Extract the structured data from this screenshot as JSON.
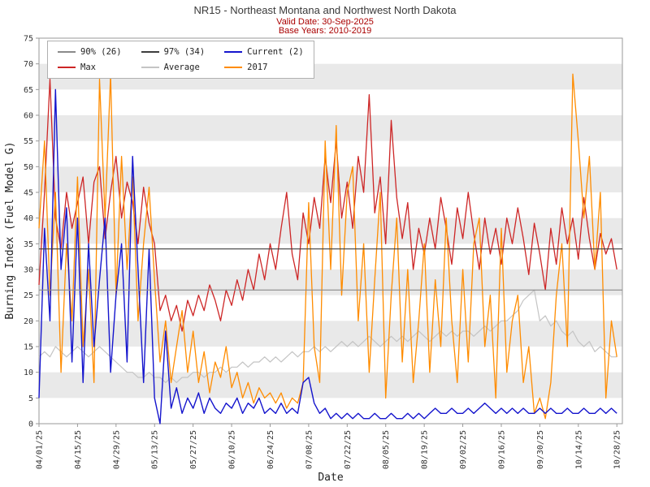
{
  "header": {
    "title": "NR15 - Northeast Montana and Northwest North Dakota",
    "valid_date": "Valid Date: 30-Sep-2025",
    "base_years": "Base Years: 2010-2019"
  },
  "chart_data": {
    "type": "line",
    "title": "NR15 - Northeast Montana and Northwest North Dakota",
    "xlabel": "Date",
    "ylabel": "Burning Index (Fuel Model G)",
    "ylim": [
      0,
      75
    ],
    "y_ticks": [
      0,
      5,
      10,
      15,
      20,
      25,
      30,
      35,
      40,
      45,
      50,
      55,
      60,
      65,
      70,
      75
    ],
    "x_max_day": 212,
    "x_step_days": 2,
    "x_ticks": [
      {
        "day": 0,
        "label": "04/01/25"
      },
      {
        "day": 14,
        "label": "04/15/25"
      },
      {
        "day": 28,
        "label": "04/29/25"
      },
      {
        "day": 42,
        "label": "05/13/25"
      },
      {
        "day": 56,
        "label": "05/27/25"
      },
      {
        "day": 70,
        "label": "06/10/25"
      },
      {
        "day": 84,
        "label": "06/24/25"
      },
      {
        "day": 98,
        "label": "07/08/25"
      },
      {
        "day": 112,
        "label": "07/22/25"
      },
      {
        "day": 126,
        "label": "08/05/25"
      },
      {
        "day": 140,
        "label": "08/19/25"
      },
      {
        "day": 154,
        "label": "09/02/25"
      },
      {
        "day": 168,
        "label": "09/16/25"
      },
      {
        "day": 182,
        "label": "09/30/25"
      },
      {
        "day": 196,
        "label": "10/14/25"
      },
      {
        "day": 210,
        "label": "10/28/25"
      }
    ],
    "colors": {
      "band": "#e9e9e9",
      "frame": "#9a9a9a"
    },
    "thresholds": [
      {
        "label": "90% (26)",
        "value": 26,
        "color": "#8a8a8a"
      },
      {
        "label": "97% (34)",
        "value": 34,
        "color": "#3d3d3d"
      }
    ],
    "legend": [
      {
        "label": "90% (26)",
        "color": "#8a8a8a"
      },
      {
        "label": "97% (34)",
        "color": "#3d3d3d"
      },
      {
        "label": "Current (2)",
        "color": "#1515cd"
      },
      {
        "label": "Max",
        "color": "#cd2626"
      },
      {
        "label": "Average",
        "color": "#c4c4c4"
      },
      {
        "label": "2017",
        "color": "#ff8c00"
      }
    ],
    "series": [
      {
        "name": "Average",
        "color": "#c4c4c4",
        "width": 1.2,
        "values": [
          13,
          14,
          13,
          15,
          14,
          13,
          14,
          15,
          14,
          13,
          14,
          15,
          14,
          13,
          12,
          11,
          10,
          10,
          9,
          9,
          10,
          9,
          9,
          8,
          9,
          8,
          9,
          9,
          10,
          10,
          9,
          10,
          10,
          11,
          10,
          11,
          11,
          12,
          11,
          12,
          12,
          13,
          12,
          13,
          12,
          13,
          14,
          13,
          14,
          14,
          15,
          14,
          15,
          14,
          15,
          16,
          15,
          16,
          15,
          16,
          17,
          16,
          15,
          16,
          17,
          16,
          17,
          16,
          17,
          18,
          17,
          16,
          17,
          18,
          17,
          18,
          17,
          18,
          18,
          17,
          18,
          19,
          18,
          19,
          20,
          20,
          21,
          22,
          24,
          25,
          26,
          20,
          21,
          19,
          20,
          18,
          17,
          18,
          16,
          15,
          16,
          14,
          15,
          14,
          13,
          13
        ]
      },
      {
        "name": "Max",
        "color": "#cd2626",
        "width": 1.3,
        "values": [
          27,
          45,
          67,
          40,
          34,
          45,
          38,
          43,
          48,
          35,
          47,
          50,
          36,
          45,
          52,
          40,
          47,
          43,
          35,
          46,
          39,
          35,
          22,
          25,
          20,
          23,
          18,
          24,
          21,
          25,
          22,
          27,
          24,
          20,
          26,
          23,
          28,
          24,
          30,
          26,
          33,
          28,
          35,
          30,
          38,
          45,
          33,
          28,
          41,
          35,
          44,
          38,
          52,
          43,
          55,
          40,
          47,
          38,
          52,
          45,
          64,
          41,
          48,
          35,
          59,
          44,
          36,
          43,
          30,
          38,
          33,
          40,
          34,
          44,
          38,
          31,
          42,
          36,
          45,
          37,
          30,
          40,
          33,
          38,
          31,
          40,
          35,
          42,
          36,
          29,
          39,
          33,
          26,
          38,
          31,
          42,
          35,
          40,
          32,
          44,
          36,
          30,
          37,
          33,
          36,
          30
        ]
      },
      {
        "name": "2017",
        "color": "#ff8c00",
        "width": 1.3,
        "values": [
          38,
          55,
          25,
          45,
          10,
          35,
          20,
          48,
          15,
          30,
          8,
          67,
          40,
          68,
          25,
          52,
          30,
          48,
          20,
          35,
          46,
          28,
          12,
          20,
          8,
          15,
          22,
          10,
          18,
          8,
          14,
          6,
          12,
          9,
          15,
          7,
          10,
          5,
          8,
          4,
          7,
          5,
          6,
          4,
          6,
          3,
          5,
          4,
          8,
          43,
          15,
          8,
          55,
          30,
          58,
          25,
          45,
          50,
          20,
          35,
          10,
          28,
          45,
          5,
          25,
          40,
          12,
          30,
          8,
          20,
          35,
          10,
          28,
          15,
          40,
          20,
          8,
          30,
          12,
          35,
          40,
          15,
          25,
          5,
          38,
          10,
          20,
          25,
          8,
          15,
          2,
          5,
          1,
          8,
          25,
          35,
          15,
          68,
          55,
          40,
          52,
          30,
          45,
          5,
          20,
          13
        ]
      },
      {
        "name": "Current (2)",
        "color": "#1515cd",
        "width": 1.4,
        "values": [
          5,
          38,
          20,
          65,
          30,
          42,
          12,
          40,
          8,
          35,
          15,
          28,
          40,
          10,
          25,
          35,
          12,
          52,
          30,
          8,
          34,
          5,
          0,
          18,
          3,
          7,
          2,
          5,
          3,
          6,
          2,
          5,
          3,
          2,
          4,
          3,
          5,
          2,
          4,
          3,
          5,
          2,
          3,
          2,
          4,
          2,
          3,
          2,
          8,
          9,
          4,
          2,
          3,
          1,
          2,
          1,
          2,
          1,
          2,
          1,
          1,
          2,
          1,
          1,
          2,
          1,
          1,
          2,
          1,
          2,
          1,
          2,
          3,
          2,
          2,
          3,
          2,
          2,
          3,
          2,
          3,
          4,
          3,
          2,
          3,
          2,
          3,
          2,
          3,
          2,
          2,
          3,
          2,
          3,
          2,
          2,
          3,
          2,
          2,
          3,
          2,
          2,
          3,
          2,
          3,
          2
        ]
      }
    ]
  }
}
